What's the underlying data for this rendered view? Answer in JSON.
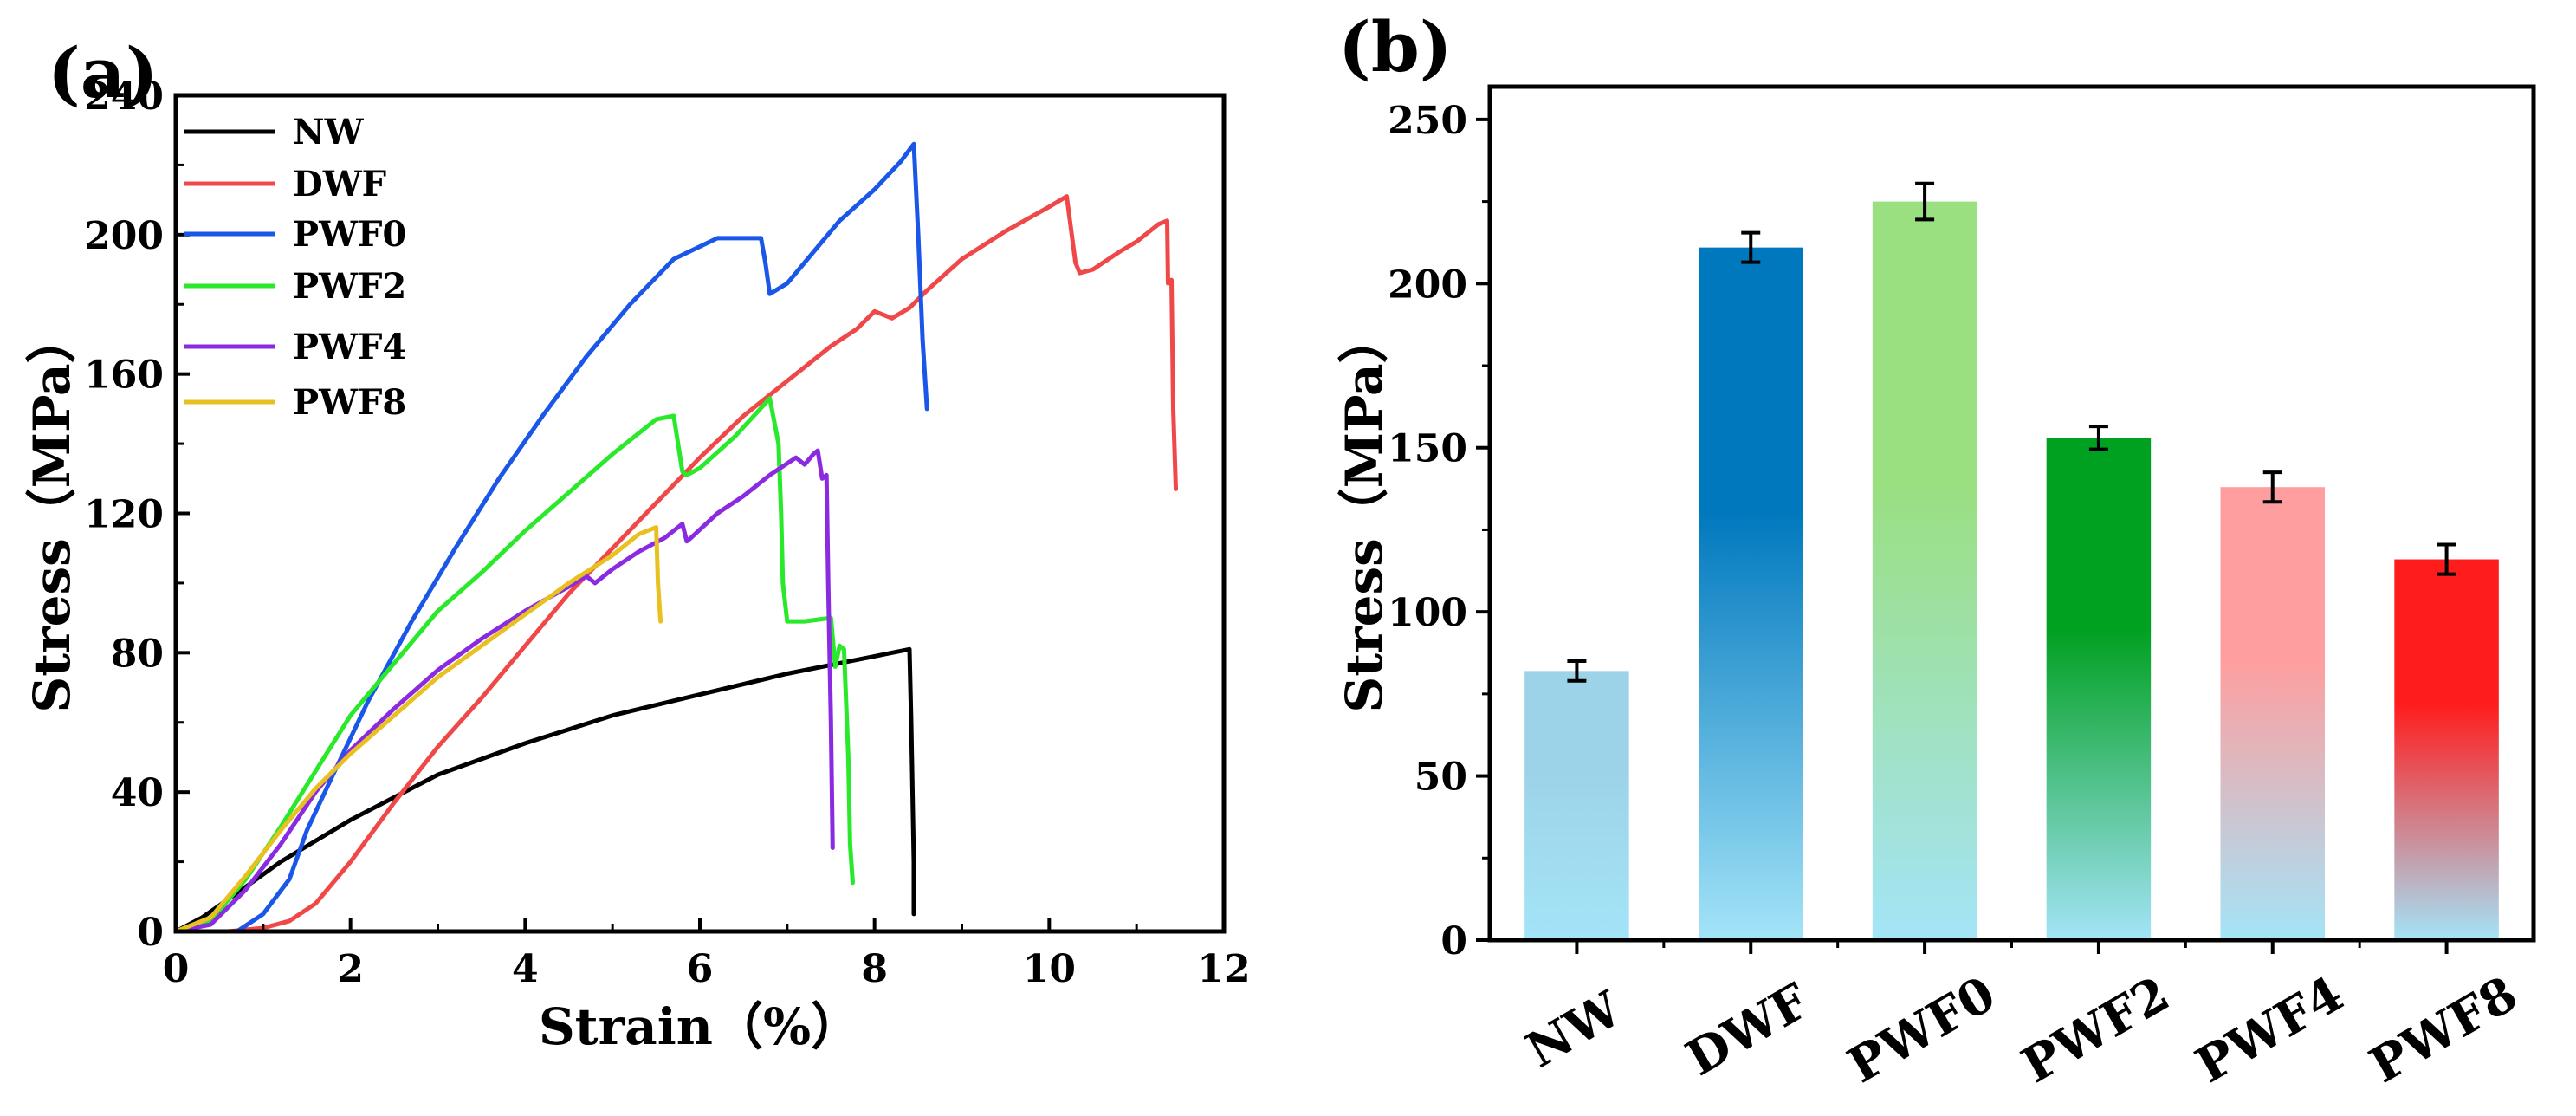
{
  "chart_data": [
    {
      "panel": "(a)",
      "type": "line",
      "xlabel": "Strain（%）",
      "ylabel": "Stress（MPa）",
      "xlim": [
        0,
        12
      ],
      "ylim": [
        0,
        240
      ],
      "xticks": [
        0,
        2,
        4,
        6,
        8,
        10,
        12
      ],
      "yticks": [
        0,
        40,
        80,
        120,
        160,
        200,
        240
      ],
      "legend_position": "top-left",
      "series": [
        {
          "name": "NW",
          "color": "#000000",
          "x": [
            0,
            0.3,
            0.7,
            1.2,
            2,
            3,
            4,
            5,
            6,
            7,
            7.6,
            8,
            8.4,
            8.42,
            8.45,
            8.45
          ],
          "y": [
            0,
            4,
            11,
            20,
            32,
            45,
            54,
            62,
            68,
            74,
            77,
            79,
            81,
            60,
            20,
            5
          ]
        },
        {
          "name": "DWF",
          "color": "#f04848",
          "x": [
            0,
            0.6,
            1,
            1.3,
            1.6,
            2,
            2.5,
            3,
            3.5,
            4,
            4.5,
            5,
            5.5,
            6,
            6.5,
            7,
            7.5,
            7.8,
            8,
            8.2,
            8.4,
            8.6,
            9,
            9.5,
            10,
            10.2,
            10.3,
            10.35,
            10.5,
            10.8,
            11,
            11.25,
            11.35,
            11.36,
            11.4,
            11.42,
            11.45
          ],
          "y": [
            0,
            0,
            1,
            3,
            8,
            20,
            37,
            53,
            67,
            82,
            97,
            110,
            123,
            136,
            148,
            158,
            168,
            173,
            178,
            176,
            179,
            184,
            193,
            201,
            208,
            211,
            192,
            189,
            190,
            195,
            198,
            203,
            204,
            186,
            187,
            150,
            127
          ]
        },
        {
          "name": "PWF0",
          "color": "#1a56e8",
          "x": [
            0,
            0.7,
            1,
            1.3,
            1.5,
            1.8,
            2.2,
            2.7,
            3.2,
            3.7,
            4.2,
            4.7,
            5.2,
            5.7,
            6.2,
            6.7,
            6.75,
            6.8,
            7,
            7.3,
            7.6,
            8,
            8.3,
            8.45,
            8.5,
            8.55,
            8.6
          ],
          "y": [
            0,
            0,
            5,
            15,
            29,
            45,
            66,
            89,
            110,
            130,
            148,
            165,
            180,
            193,
            199,
            199,
            192,
            183,
            186,
            195,
            204,
            213,
            221,
            226,
            200,
            170,
            150
          ]
        },
        {
          "name": "PWF2",
          "color": "#2ae82a",
          "x": [
            0,
            0.4,
            0.8,
            1.2,
            1.6,
            2,
            2.5,
            3,
            3.5,
            4,
            4.5,
            5,
            5.5,
            5.7,
            5.75,
            5.8,
            5.85,
            6,
            6.4,
            6.8,
            6.9,
            6.93,
            6.95,
            7,
            7.2,
            7.5,
            7.55,
            7.6,
            7.65,
            7.7,
            7.72,
            7.75
          ],
          "y": [
            0,
            3,
            15,
            30,
            46,
            62,
            77,
            92,
            103,
            115,
            126,
            137,
            147,
            148,
            140,
            132,
            131,
            133,
            142,
            153,
            140,
            120,
            100,
            89,
            89,
            90,
            76,
            82,
            81,
            50,
            25,
            14
          ]
        },
        {
          "name": "PWF4",
          "color": "#8a2be2",
          "x": [
            0,
            0.4,
            0.8,
            1.2,
            1.6,
            2,
            2.5,
            3,
            3.5,
            4,
            4.5,
            4.7,
            4.8,
            5,
            5.3,
            5.6,
            5.8,
            5.85,
            5.9,
            6.2,
            6.5,
            6.8,
            7.1,
            7.2,
            7.3,
            7.35,
            7.4,
            7.45,
            7.47,
            7.5,
            7.52
          ],
          "y": [
            0,
            2,
            12,
            25,
            40,
            52,
            64,
            75,
            84,
            92,
            99,
            102,
            100,
            104,
            109,
            113,
            117,
            112,
            113,
            120,
            125,
            131,
            136,
            134,
            137,
            138,
            130,
            131,
            100,
            60,
            24
          ]
        },
        {
          "name": "PWF8",
          "color": "#e8c020",
          "x": [
            0,
            0.4,
            0.8,
            1.2,
            1.6,
            2,
            2.5,
            3,
            3.5,
            4,
            4.5,
            5,
            5.3,
            5.5,
            5.52,
            5.55
          ],
          "y": [
            0,
            4,
            16,
            29,
            41,
            51,
            62,
            73,
            82,
            91,
            100,
            108,
            114,
            116,
            100,
            89
          ]
        }
      ]
    },
    {
      "panel": "(b)",
      "type": "bar",
      "ylabel": "Stress（MPa）",
      "ylim": [
        0,
        260
      ],
      "yticks": [
        0,
        50,
        100,
        150,
        200,
        250
      ],
      "categories": [
        "NW",
        "DWF",
        "PWF0",
        "PWF2",
        "PWF4",
        "PWF8"
      ],
      "values": [
        82,
        211,
        225,
        153,
        138,
        116
      ],
      "errors": [
        3,
        4.5,
        5.5,
        3.5,
        4.5,
        4.5
      ],
      "bar_gradients": [
        {
          "top": "#9dd3e8",
          "bottom": "#a4e4f8"
        },
        {
          "top": "#0078be",
          "bottom": "#a4e4f8"
        },
        {
          "top": "#9adf80",
          "bottom": "#a4e4f8"
        },
        {
          "top": "#00a020",
          "bottom": "#a4e4f8"
        },
        {
          "top": "#ff9e9e",
          "bottom": "#a4e4f8"
        },
        {
          "top": "#ff1c1c",
          "bottom": "#a4e4f8"
        }
      ]
    }
  ]
}
